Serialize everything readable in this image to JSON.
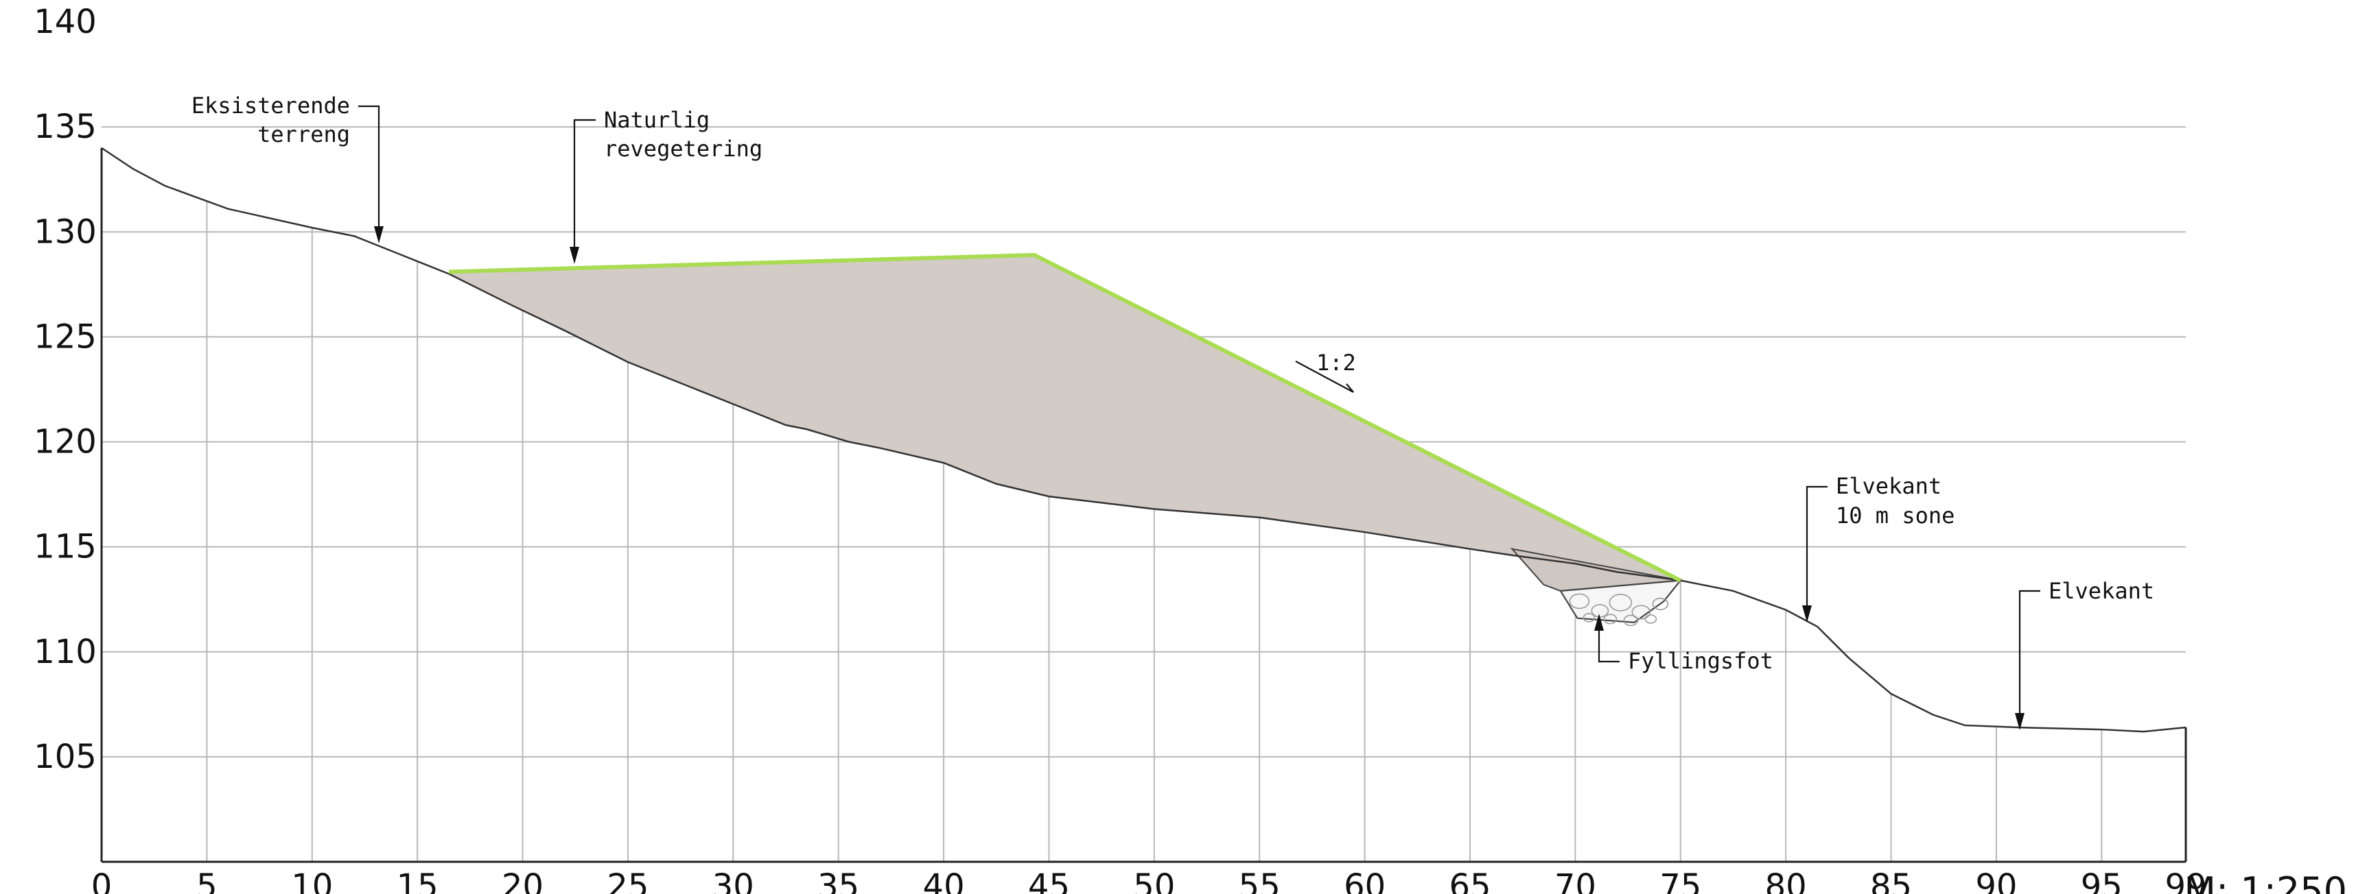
{
  "chart_data": {
    "type": "area",
    "title": "",
    "xlabel": "",
    "ylabel": "",
    "xlim": [
      0,
      99
    ],
    "ylim": [
      100,
      140
    ],
    "x_ticks": [
      0,
      5,
      10,
      15,
      20,
      25,
      30,
      35,
      40,
      45,
      50,
      55,
      60,
      65,
      70,
      75,
      80,
      85,
      90,
      95,
      99
    ],
    "x_tick_labels": [
      "0",
      "5",
      "10",
      "15",
      "20",
      "25",
      "30",
      "35",
      "40",
      "45",
      "50",
      "55",
      "60",
      "65",
      "70",
      "75",
      "80",
      "85",
      "90",
      "95",
      "99"
    ],
    "y_ticks": [
      105,
      110,
      115,
      120,
      125,
      130,
      135,
      140
    ],
    "y_tick_labels": [
      "105",
      "110",
      "115",
      "120",
      "125",
      "130",
      "135",
      "140"
    ],
    "grid": true,
    "series": [
      {
        "role": "existing-terrain",
        "x": [
          0,
          1.5,
          3,
          6,
          10,
          12,
          14,
          16.5,
          19.5,
          22,
          25,
          28,
          31,
          32.5,
          33.5,
          34.5,
          35.5,
          37,
          40,
          42.5,
          45,
          50,
          55,
          60,
          65,
          67,
          70,
          72,
          75,
          77.5,
          80,
          81.5,
          83,
          85,
          87,
          88.5,
          91,
          95,
          97,
          99
        ],
        "y": [
          134,
          133,
          132.2,
          131.1,
          130.2,
          129.8,
          129,
          128,
          126.5,
          125.3,
          123.8,
          122.6,
          121.4,
          120.8,
          120.6,
          120.3,
          120,
          119.7,
          119,
          118,
          117.4,
          116.8,
          116.4,
          115.7,
          114.9,
          114.6,
          114.2,
          113.8,
          113.4,
          112.9,
          112,
          111.2,
          109.7,
          108,
          107,
          106.5,
          106.4,
          106.3,
          106.2,
          106.4
        ]
      },
      {
        "role": "fill-surface",
        "x": [
          16.5,
          44.3,
          75
        ],
        "y": [
          128.1,
          128.9,
          113.4
        ]
      }
    ],
    "toe_outline": {
      "x": [
        67,
        68.5,
        69.3,
        70.1,
        72.8,
        74.2,
        75
      ],
      "y": [
        114.9,
        113.2,
        112.9,
        111.6,
        111.4,
        112.4,
        113.4
      ]
    }
  },
  "annotations": {
    "existing_terrain_line1": "Eksisterende",
    "existing_terrain_line2": "terreng",
    "revegetation_line1": "Naturlig",
    "revegetation_line2": "revegetering",
    "slope_ratio": "1:2",
    "river_edge_zone_line1": "Elvekant",
    "river_edge_zone_line2": "10 m sone",
    "river_edge": "Elvekant",
    "fill_toe": "Fyllingsfot"
  },
  "scale_label": "M: 1:250",
  "colors": {
    "fill": "#d3cbc6",
    "revegetation": "#a9dc52",
    "terrain": "#333333",
    "grid": "#b8b8b8"
  }
}
